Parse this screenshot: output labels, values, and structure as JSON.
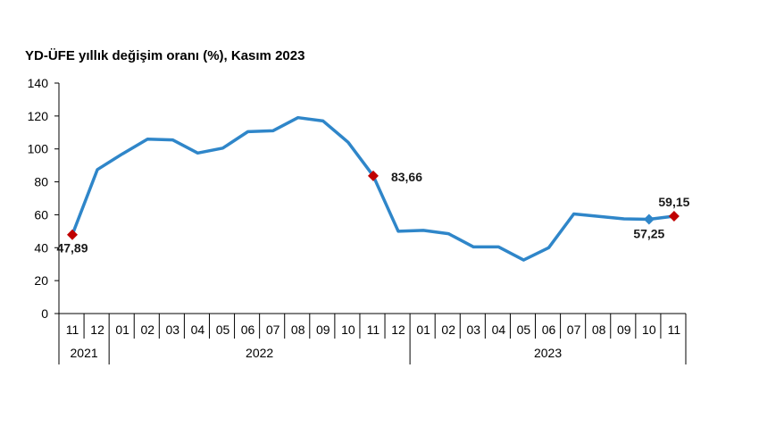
{
  "chart_data": {
    "type": "line",
    "title": "YD-ÜFE yıllık değişim oranı (%), Kasım 2023",
    "xlabel": "",
    "ylabel": "",
    "ylim": [
      0,
      140
    ],
    "yticks": [
      "0",
      "20",
      "40",
      "60",
      "80",
      "100",
      "120",
      "140"
    ],
    "categories": [
      "11",
      "12",
      "01",
      "02",
      "03",
      "04",
      "05",
      "06",
      "07",
      "08",
      "09",
      "10",
      "11",
      "12",
      "01",
      "02",
      "03",
      "04",
      "05",
      "06",
      "07",
      "08",
      "09",
      "10",
      "11"
    ],
    "years": [
      {
        "label": "2021",
        "start": 0,
        "end": 1
      },
      {
        "label": "2022",
        "start": 2,
        "end": 13
      },
      {
        "label": "2023",
        "start": 14,
        "end": 24
      }
    ],
    "series": [
      {
        "name": "YD-ÜFE",
        "color": "#2f86c9",
        "values": [
          47.89,
          87.5,
          97,
          106,
          105.5,
          97.5,
          100.5,
          110.5,
          111,
          119,
          117,
          104,
          83.66,
          50,
          50.5,
          48.5,
          40.5,
          40.5,
          32.5,
          40,
          60.5,
          59,
          57.5,
          57.25,
          59.15
        ]
      }
    ],
    "annotations": [
      {
        "index": 0,
        "label": "47,89",
        "marker": "diamond",
        "color": "#c00000"
      },
      {
        "index": 12,
        "label": "83,66",
        "marker": "diamond",
        "color": "#c00000"
      },
      {
        "index": 23,
        "label": "57,25",
        "marker": "diamond",
        "color": "#2f86c9"
      },
      {
        "index": 24,
        "label": "59,15",
        "marker": "diamond",
        "color": "#c00000"
      }
    ],
    "grid": false,
    "legend": "none"
  }
}
